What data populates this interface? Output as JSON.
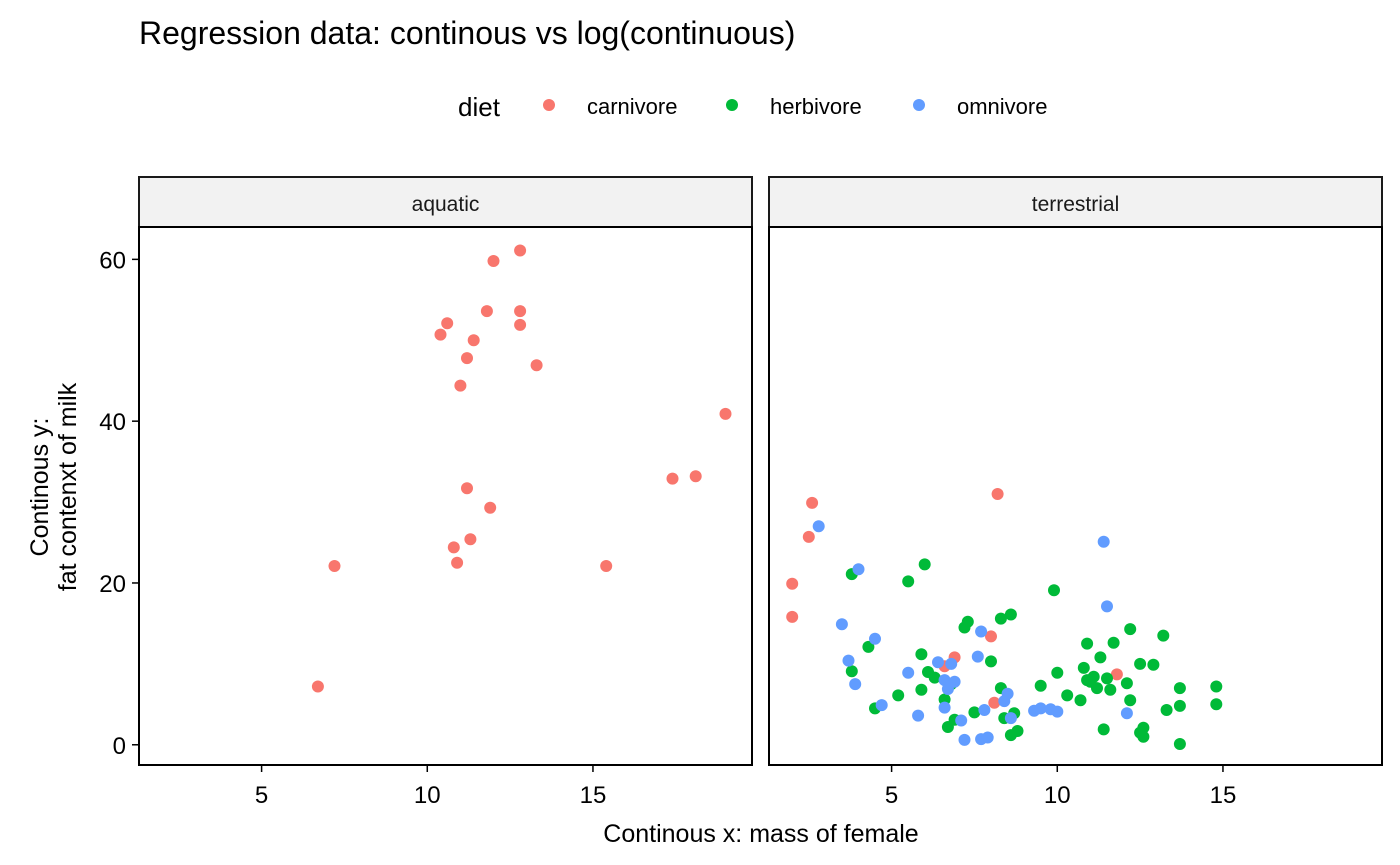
{
  "chart_data": {
    "type": "scatter",
    "title": "Regression data: continous vs log(continuous)",
    "xlabel": "Continous x: mass of female",
    "ylabel_lines": [
      "Continous y:",
      "fat contenxt of milk"
    ],
    "xlim": [
      1.3,
      19.8
    ],
    "ylim": [
      -2.5,
      64
    ],
    "x_ticks": [
      5,
      10,
      15
    ],
    "y_ticks": [
      0,
      20,
      40,
      60
    ],
    "grid": false,
    "legend": {
      "title": "diet",
      "position": "top",
      "entries": [
        {
          "name": "carnivore",
          "color": "#F8766D"
        },
        {
          "name": "herbivore",
          "color": "#00BA38"
        },
        {
          "name": "omnivore",
          "color": "#619CFF"
        }
      ]
    },
    "facets": [
      {
        "label": "aquatic",
        "series": [
          {
            "name": "carnivore",
            "color": "#F8766D",
            "points": [
              [
                6.7,
                7.2
              ],
              [
                7.2,
                22.1
              ],
              [
                10.4,
                50.7
              ],
              [
                10.6,
                52.1
              ],
              [
                10.8,
                24.4
              ],
              [
                10.9,
                22.5
              ],
              [
                11.0,
                44.4
              ],
              [
                11.2,
                31.7
              ],
              [
                11.2,
                47.8
              ],
              [
                11.3,
                25.4
              ],
              [
                11.4,
                50.0
              ],
              [
                11.8,
                53.6
              ],
              [
                11.9,
                29.3
              ],
              [
                12.0,
                59.8
              ],
              [
                12.8,
                61.1
              ],
              [
                12.8,
                53.6
              ],
              [
                12.8,
                51.9
              ],
              [
                13.3,
                46.9
              ],
              [
                15.4,
                22.1
              ],
              [
                17.4,
                32.9
              ],
              [
                18.1,
                33.2
              ],
              [
                19.0,
                40.9
              ]
            ]
          },
          {
            "name": "herbivore",
            "color": "#00BA38",
            "points": []
          },
          {
            "name": "omnivore",
            "color": "#619CFF",
            "points": []
          }
        ]
      },
      {
        "label": "terrestrial",
        "series": [
          {
            "name": "carnivore",
            "color": "#F8766D",
            "points": [
              [
                2.0,
                15.8
              ],
              [
                2.0,
                19.9
              ],
              [
                2.5,
                25.7
              ],
              [
                2.6,
                29.9
              ],
              [
                6.6,
                9.7
              ],
              [
                6.9,
                10.8
              ],
              [
                8.0,
                13.4
              ],
              [
                8.1,
                5.2
              ],
              [
                8.2,
                31.0
              ],
              [
                11.8,
                8.7
              ]
            ]
          },
          {
            "name": "herbivore",
            "color": "#00BA38",
            "points": [
              [
                3.8,
                21.1
              ],
              [
                3.8,
                9.1
              ],
              [
                4.3,
                12.1
              ],
              [
                4.5,
                4.5
              ],
              [
                5.2,
                6.1
              ],
              [
                5.5,
                20.2
              ],
              [
                5.9,
                6.8
              ],
              [
                5.9,
                11.2
              ],
              [
                6.0,
                22.3
              ],
              [
                6.1,
                9.0
              ],
              [
                6.3,
                8.3
              ],
              [
                6.6,
                5.6
              ],
              [
                6.7,
                2.2
              ],
              [
                6.8,
                7.5
              ],
              [
                6.9,
                3.1
              ],
              [
                7.2,
                14.5
              ],
              [
                7.3,
                15.2
              ],
              [
                7.5,
                4.0
              ],
              [
                8.0,
                10.3
              ],
              [
                8.3,
                15.6
              ],
              [
                8.3,
                7.0
              ],
              [
                8.4,
                3.3
              ],
              [
                8.6,
                1.2
              ],
              [
                8.6,
                16.1
              ],
              [
                8.7,
                3.9
              ],
              [
                8.8,
                1.7
              ],
              [
                9.5,
                7.3
              ],
              [
                9.9,
                19.1
              ],
              [
                10.0,
                8.9
              ],
              [
                10.3,
                6.1
              ],
              [
                10.7,
                5.5
              ],
              [
                10.8,
                9.5
              ],
              [
                10.9,
                12.5
              ],
              [
                10.9,
                8.0
              ],
              [
                11.0,
                7.8
              ],
              [
                11.1,
                8.4
              ],
              [
                11.2,
                7.0
              ],
              [
                11.3,
                10.8
              ],
              [
                11.4,
                1.9
              ],
              [
                11.5,
                8.2
              ],
              [
                11.6,
                6.8
              ],
              [
                11.7,
                12.6
              ],
              [
                12.1,
                7.6
              ],
              [
                12.2,
                14.3
              ],
              [
                12.2,
                5.5
              ],
              [
                12.5,
                10.0
              ],
              [
                12.5,
                1.5
              ],
              [
                12.6,
                1.0
              ],
              [
                12.6,
                2.1
              ],
              [
                12.9,
                9.9
              ],
              [
                13.2,
                13.5
              ],
              [
                13.3,
                4.3
              ],
              [
                13.7,
                7.0
              ],
              [
                13.7,
                4.8
              ],
              [
                13.7,
                0.1
              ],
              [
                14.8,
                5.0
              ],
              [
                14.8,
                7.2
              ]
            ]
          },
          {
            "name": "omnivore",
            "color": "#619CFF",
            "points": [
              [
                2.8,
                27.0
              ],
              [
                3.5,
                14.9
              ],
              [
                3.7,
                10.4
              ],
              [
                3.9,
                7.5
              ],
              [
                4.0,
                21.7
              ],
              [
                4.5,
                13.1
              ],
              [
                4.7,
                4.9
              ],
              [
                5.5,
                8.9
              ],
              [
                5.8,
                3.6
              ],
              [
                6.4,
                10.2
              ],
              [
                6.6,
                8.0
              ],
              [
                6.6,
                4.6
              ],
              [
                6.7,
                6.9
              ],
              [
                6.8,
                10.0
              ],
              [
                6.9,
                7.8
              ],
              [
                7.1,
                3.0
              ],
              [
                7.2,
                0.6
              ],
              [
                7.6,
                10.9
              ],
              [
                7.7,
                14.0
              ],
              [
                7.7,
                0.7
              ],
              [
                7.8,
                4.3
              ],
              [
                7.9,
                0.9
              ],
              [
                8.4,
                5.4
              ],
              [
                8.5,
                6.3
              ],
              [
                8.6,
                3.3
              ],
              [
                9.3,
                4.2
              ],
              [
                9.5,
                4.5
              ],
              [
                9.8,
                4.4
              ],
              [
                10.0,
                4.1
              ],
              [
                11.4,
                25.1
              ],
              [
                11.5,
                17.1
              ],
              [
                12.1,
                3.9
              ]
            ]
          }
        ]
      }
    ]
  }
}
